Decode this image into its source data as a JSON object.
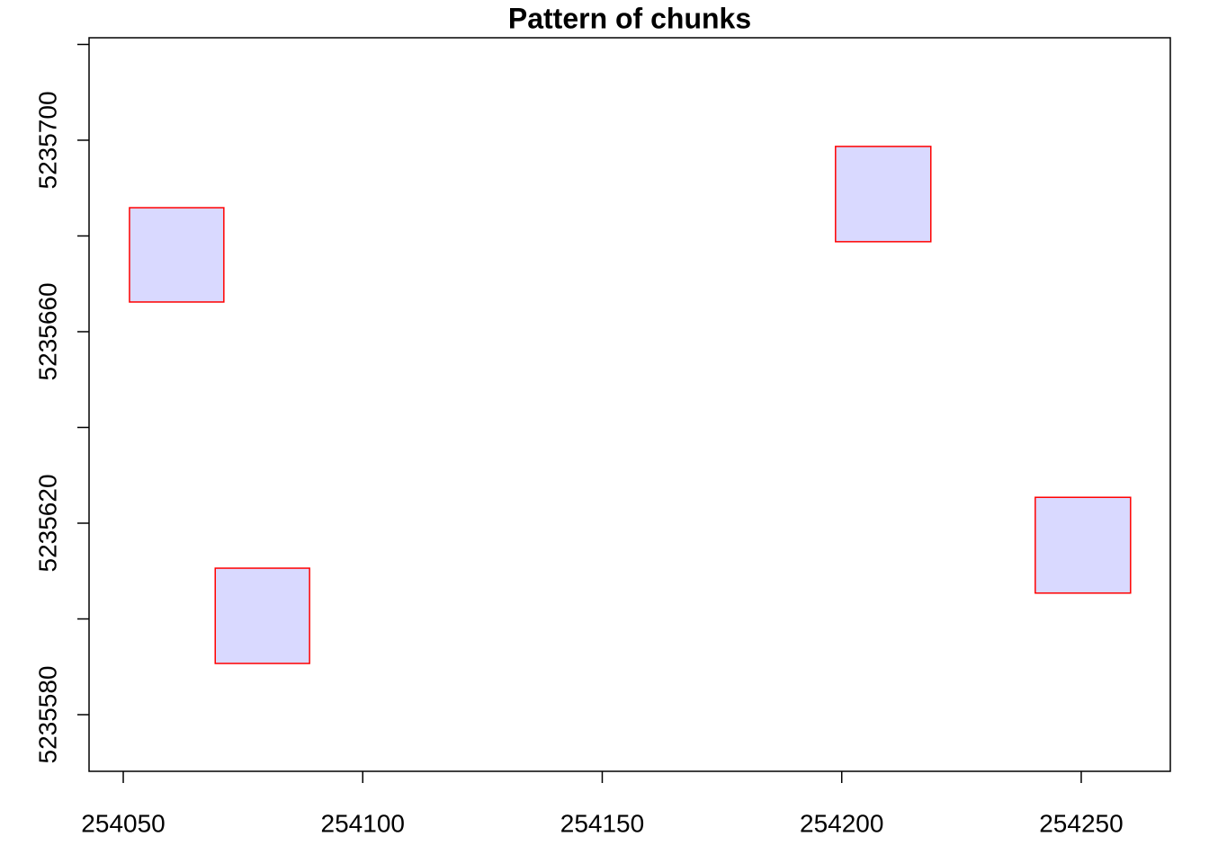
{
  "chart_data": {
    "type": "rect",
    "title": "Pattern of chunks",
    "rects": [
      {
        "xmin": 254051.3,
        "xmax": 254071.0,
        "ymin": 5235666.2,
        "ymax": 5235685.9
      },
      {
        "xmin": 254069.2,
        "xmax": 254088.9,
        "ymin": 5235590.7,
        "ymax": 5235610.6
      },
      {
        "xmin": 254198.7,
        "xmax": 254218.6,
        "ymin": 5235678.8,
        "ymax": 5235698.7
      },
      {
        "xmin": 254240.4,
        "xmax": 254260.3,
        "ymin": 5235605.4,
        "ymax": 5235625.4
      }
    ],
    "fill": "#d9d9ff",
    "stroke": "#ff0000",
    "xlim": [
      254042.86,
      254268.6
    ],
    "ylim": [
      5235568.17,
      5235721.4
    ],
    "xticks": [
      254050,
      254100,
      254150,
      254200,
      254250
    ],
    "yticks": [
      5235580,
      5235620,
      5235660,
      5235700
    ],
    "yminorticks": [
      5235600,
      5235640,
      5235680,
      5235720
    ]
  }
}
